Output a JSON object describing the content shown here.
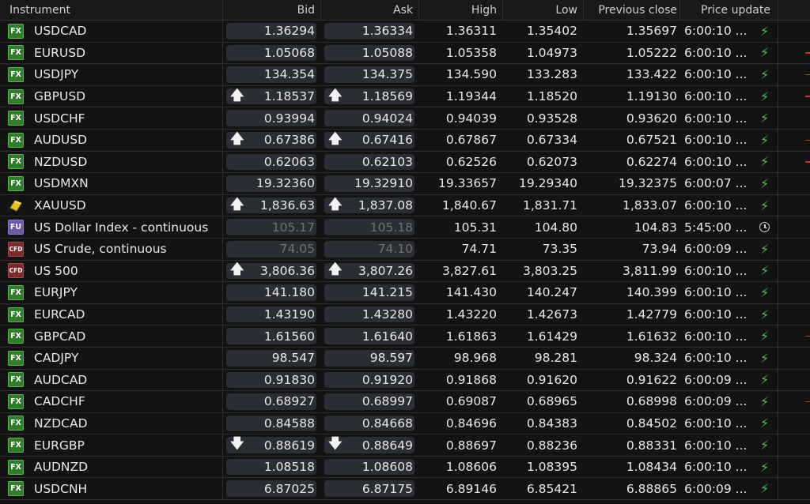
{
  "columns": {
    "instrument": "Instrument",
    "bid": "Bid",
    "ask": "Ask",
    "high": "High",
    "low": "Low",
    "prev_close": "Previous close",
    "price_update": "Price update"
  },
  "colors": {
    "fx": "#2f7d2a",
    "fu": "#6a58a8",
    "cfd": "#7a2a2a",
    "live": "#4ec34e",
    "pill": "#2a2d33"
  },
  "rows": [
    {
      "icon": "FX",
      "name": "USDCAD",
      "arrow": "",
      "bid": "1.36294",
      "ask": "1.36334",
      "high": "1.36311",
      "low": "1.35402",
      "prev": "1.35697",
      "update": "6:00:10 ...",
      "status": "bolt-icon",
      "dim": false,
      "tick": false
    },
    {
      "icon": "FX",
      "name": "EURUSD",
      "arrow": "",
      "bid": "1.05068",
      "ask": "1.05088",
      "high": "1.05358",
      "low": "1.04973",
      "prev": "1.05222",
      "update": "6:00:10 ...",
      "status": "bolt-icon",
      "dim": false,
      "tick": true
    },
    {
      "icon": "FX",
      "name": "USDJPY",
      "arrow": "",
      "bid": "134.354",
      "ask": "134.375",
      "high": "134.590",
      "low": "133.283",
      "prev": "133.422",
      "update": "6:00:10 ...",
      "status": "bolt-icon",
      "dim": false,
      "tick": true
    },
    {
      "icon": "FX",
      "name": "GBPUSD",
      "arrow": "up",
      "bid": "1.18537",
      "ask": "1.18569",
      "high": "1.19344",
      "low": "1.18520",
      "prev": "1.19130",
      "update": "6:00:10 ...",
      "status": "bolt-icon",
      "dim": false,
      "tick": true
    },
    {
      "icon": "FX",
      "name": "USDCHF",
      "arrow": "",
      "bid": "0.93994",
      "ask": "0.94024",
      "high": "0.94039",
      "low": "0.93528",
      "prev": "0.93620",
      "update": "6:00:10 ...",
      "status": "bolt-icon",
      "dim": false,
      "tick": false
    },
    {
      "icon": "FX",
      "name": "AUDUSD",
      "arrow": "up",
      "bid": "0.67386",
      "ask": "0.67416",
      "high": "0.67867",
      "low": "0.67334",
      "prev": "0.67521",
      "update": "6:00:10 ...",
      "status": "bolt-icon",
      "dim": false,
      "tick": true
    },
    {
      "icon": "FX",
      "name": "NZDUSD",
      "arrow": "",
      "bid": "0.62063",
      "ask": "0.62103",
      "high": "0.62526",
      "low": "0.62073",
      "prev": "0.62274",
      "update": "6:00:10 ...",
      "status": "bolt-icon",
      "dim": false,
      "tick": true
    },
    {
      "icon": "FX",
      "name": "USDMXN",
      "arrow": "",
      "bid": "19.32360",
      "ask": "19.32910",
      "high": "19.33657",
      "low": "19.29340",
      "prev": "19.32375",
      "update": "6:00:07 ...",
      "status": "bolt-icon",
      "dim": false,
      "tick": false
    },
    {
      "icon": "GOLD",
      "name": "XAUUSD",
      "arrow": "up",
      "bid": "1,836.63",
      "ask": "1,837.08",
      "high": "1,840.67",
      "low": "1,831.71",
      "prev": "1,833.07",
      "update": "6:00:10 ...",
      "status": "bolt-icon",
      "dim": false,
      "tick": false
    },
    {
      "icon": "FU",
      "name": "US Dollar Index - continuous",
      "arrow": "",
      "bid": "105.17",
      "ask": "105.18",
      "high": "105.31",
      "low": "104.80",
      "prev": "104.83",
      "update": "5:45:00 ...",
      "status": "clock-icon",
      "dim": true,
      "tick": false
    },
    {
      "icon": "CFD",
      "name": "US Crude, continuous",
      "arrow": "",
      "bid": "74.05",
      "ask": "74.10",
      "high": "74.71",
      "low": "73.35",
      "prev": "73.94",
      "update": "6:00:09 ...",
      "status": "bolt-icon",
      "dim": true,
      "tick": false
    },
    {
      "icon": "CFD",
      "name": "US 500",
      "arrow": "up",
      "bid": "3,806.36",
      "ask": "3,807.26",
      "high": "3,827.61",
      "low": "3,803.25",
      "prev": "3,811.99",
      "update": "6:00:10 ...",
      "status": "bolt-icon",
      "dim": false,
      "tick": false
    },
    {
      "icon": "FX",
      "name": "EURJPY",
      "arrow": "",
      "bid": "141.180",
      "ask": "141.215",
      "high": "141.430",
      "low": "140.247",
      "prev": "140.399",
      "update": "6:00:10 ...",
      "status": "bolt-icon",
      "dim": false,
      "tick": false
    },
    {
      "icon": "FX",
      "name": "EURCAD",
      "arrow": "",
      "bid": "1.43190",
      "ask": "1.43280",
      "high": "1.43220",
      "low": "1.42673",
      "prev": "1.42779",
      "update": "6:00:10 ...",
      "status": "bolt-icon",
      "dim": false,
      "tick": false
    },
    {
      "icon": "FX",
      "name": "GBPCAD",
      "arrow": "",
      "bid": "1.61560",
      "ask": "1.61640",
      "high": "1.61863",
      "low": "1.61429",
      "prev": "1.61632",
      "update": "6:00:10 ...",
      "status": "bolt-icon",
      "dim": false,
      "tick": true
    },
    {
      "icon": "FX",
      "name": "CADJPY",
      "arrow": "",
      "bid": "98.547",
      "ask": "98.597",
      "high": "98.968",
      "low": "98.281",
      "prev": "98.324",
      "update": "6:00:10 ...",
      "status": "bolt-icon",
      "dim": false,
      "tick": false
    },
    {
      "icon": "FX",
      "name": "AUDCAD",
      "arrow": "",
      "bid": "0.91830",
      "ask": "0.91920",
      "high": "0.91868",
      "low": "0.91620",
      "prev": "0.91622",
      "update": "6:00:09 ...",
      "status": "bolt-icon",
      "dim": false,
      "tick": false
    },
    {
      "icon": "FX",
      "name": "CADCHF",
      "arrow": "",
      "bid": "0.68927",
      "ask": "0.68997",
      "high": "0.69087",
      "low": "0.68965",
      "prev": "0.68998",
      "update": "6:00:09 ...",
      "status": "bolt-icon",
      "dim": false,
      "tick": true
    },
    {
      "icon": "FX",
      "name": "NZDCAD",
      "arrow": "",
      "bid": "0.84588",
      "ask": "0.84668",
      "high": "0.84696",
      "low": "0.84383",
      "prev": "0.84502",
      "update": "6:00:10 ...",
      "status": "bolt-icon",
      "dim": false,
      "tick": false
    },
    {
      "icon": "FX",
      "name": "EURGBP",
      "arrow": "down",
      "bid": "0.88619",
      "ask": "0.88649",
      "high": "0.88697",
      "low": "0.88236",
      "prev": "0.88331",
      "update": "6:00:10 ...",
      "status": "bolt-icon",
      "dim": false,
      "tick": false
    },
    {
      "icon": "FX",
      "name": "AUDNZD",
      "arrow": "",
      "bid": "1.08518",
      "ask": "1.08608",
      "high": "1.08606",
      "low": "1.08395",
      "prev": "1.08434",
      "update": "6:00:10 ...",
      "status": "bolt-icon",
      "dim": false,
      "tick": false
    },
    {
      "icon": "FX",
      "name": "USDCNH",
      "arrow": "",
      "bid": "6.87025",
      "ask": "6.87175",
      "high": "6.89146",
      "low": "6.85421",
      "prev": "6.88865",
      "update": "6:00:09 ...",
      "status": "bolt-icon",
      "dim": false,
      "tick": false
    }
  ]
}
